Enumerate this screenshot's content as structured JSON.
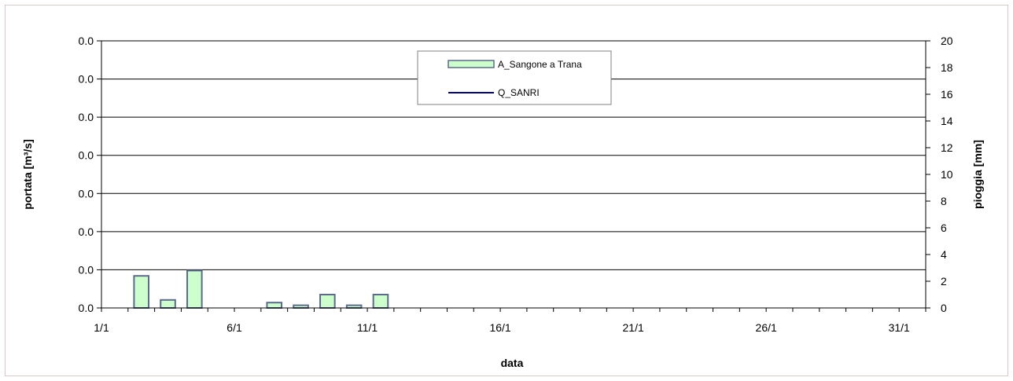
{
  "chart_data": {
    "type": "bar",
    "title": "",
    "xlabel": "data",
    "ylabel_left": "portata [m³/s]",
    "ylabel_right": "pioggia [mm]",
    "x_tick_labels": [
      "1/1",
      "6/1",
      "11/1",
      "16/1",
      "21/1",
      "26/1",
      "31/1"
    ],
    "x_tick_days": [
      1,
      6,
      11,
      16,
      21,
      26,
      31
    ],
    "xlim": [
      1,
      32
    ],
    "left_axis": {
      "tick_labels": [
        "0.0",
        "0.0",
        "0.0",
        "0.0",
        "0.0",
        "0.0",
        "0.0",
        "0.0"
      ],
      "ylim": [
        0,
        20
      ]
    },
    "right_axis": {
      "tick_values": [
        0,
        2,
        4,
        6,
        8,
        10,
        12,
        14,
        16,
        18,
        20
      ],
      "ylim": [
        0,
        20
      ]
    },
    "grid": true,
    "legend_position": "top-center",
    "series": [
      {
        "name": "A_Sangone a Trana",
        "kind": "bar",
        "axis": "right",
        "color": "#ccffcc",
        "edge_color": "#5b6b8c",
        "points": [
          {
            "day": 2,
            "value": 2.4
          },
          {
            "day": 3,
            "value": 0.6
          },
          {
            "day": 4,
            "value": 2.8
          },
          {
            "day": 7,
            "value": 0.4
          },
          {
            "day": 8,
            "value": 0.2
          },
          {
            "day": 9,
            "value": 1.0
          },
          {
            "day": 10,
            "value": 0.2
          },
          {
            "day": 11,
            "value": 1.0
          }
        ]
      },
      {
        "name": "Q_SANRI",
        "kind": "line",
        "axis": "left",
        "color": "#000080",
        "points": []
      }
    ]
  }
}
